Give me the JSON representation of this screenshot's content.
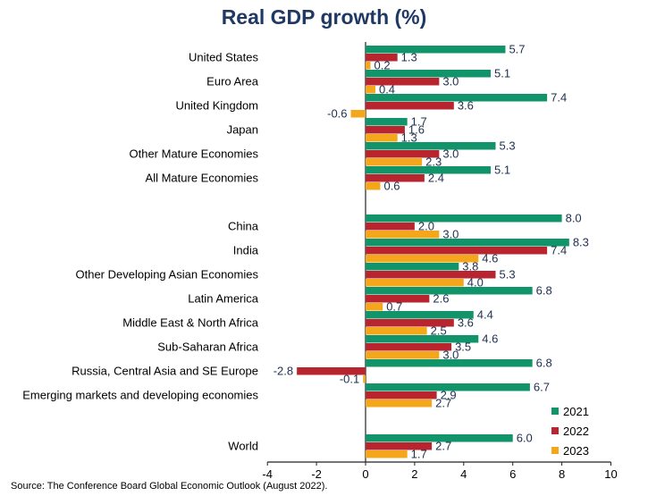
{
  "chart_data": {
    "type": "bar",
    "orientation": "horizontal",
    "title": "Real GDP growth (%)",
    "source": "Source: The Conference Board Global Economic Outlook (August 2022).",
    "xlim": [
      -4,
      10
    ],
    "x_ticks": [
      "-4",
      "-2",
      "0",
      "2",
      "4",
      "6",
      "8",
      "10"
    ],
    "grid": false,
    "legend_position": "bottom-right",
    "categories": [
      "United States",
      "Euro Area",
      "United Kingdom",
      "Japan",
      "Other Mature Economies",
      "All Mature Economies",
      "China",
      "India",
      "Other Developing Asian Economies",
      "Latin America",
      "Middle East & North Africa",
      "Sub-Saharan Africa",
      "Russia, Central Asia and SE Europe",
      "Emerging markets and developing economies",
      "World"
    ],
    "series": [
      {
        "name": "2021",
        "color": "#12946a",
        "values": [
          5.7,
          5.1,
          7.4,
          1.7,
          5.3,
          5.1,
          8.0,
          8.3,
          3.8,
          6.8,
          4.4,
          4.6,
          6.8,
          6.7,
          6.0
        ],
        "labels": [
          "5.7",
          "5.1",
          "7.4",
          "1.7",
          "5.3",
          "5.1",
          "8.0",
          "8.3",
          "3.8",
          "6.8",
          "4.4",
          "4.6",
          "6.8",
          "6.7",
          "6.0"
        ]
      },
      {
        "name": "2022",
        "color": "#b8252f",
        "values": [
          1.3,
          3.0,
          3.6,
          1.6,
          3.0,
          2.4,
          2.0,
          7.4,
          5.3,
          2.6,
          3.6,
          3.5,
          -2.8,
          2.9,
          2.7
        ],
        "labels": [
          "1.3",
          "3.0",
          "3.6",
          "1.6",
          "3.0",
          "2.4",
          "2.0",
          "7.4",
          "5.3",
          "2.6",
          "3.6",
          "3.5",
          "-2.8",
          "2.9",
          "2.7"
        ]
      },
      {
        "name": "2023",
        "color": "#f5a71c",
        "values": [
          0.2,
          0.4,
          -0.6,
          1.3,
          2.3,
          0.6,
          3.0,
          4.6,
          4.0,
          0.7,
          2.5,
          3.0,
          -0.1,
          2.7,
          1.7
        ],
        "labels": [
          "0.2",
          "0.4",
          "-0.6",
          "1.3",
          "2.3",
          "0.6",
          "3.0",
          "4.6",
          "4.0",
          "0.7",
          "2.5",
          "3.0",
          "-0.1",
          "2.7",
          "1.7"
        ]
      }
    ]
  }
}
